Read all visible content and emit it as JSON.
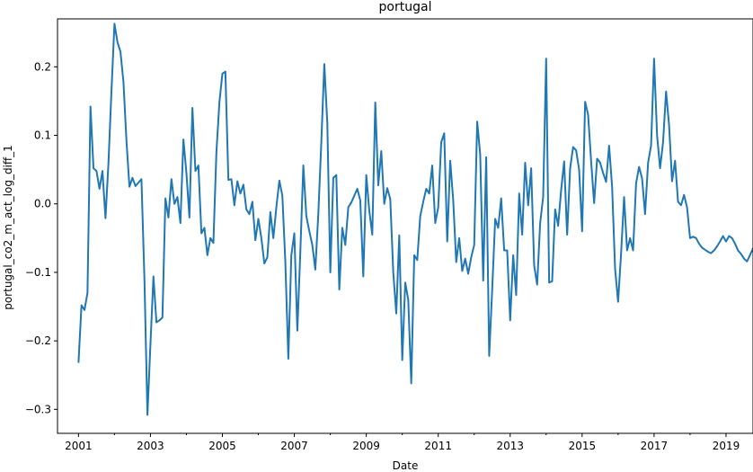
{
  "chart_data": {
    "type": "line",
    "title": "portugal",
    "xlabel": "Date",
    "ylabel": "portugal_co2_m_act_log_diff_1",
    "x_ticks": [
      "2001",
      "2003",
      "2005",
      "2007",
      "2009",
      "2011",
      "2013",
      "2015",
      "2017",
      "2019"
    ],
    "y_ticks": [
      "0.2",
      "0.1",
      "0.0",
      "−0.1",
      "−0.2",
      "−0.3"
    ],
    "ylim": [
      -0.335,
      0.27
    ],
    "xlim": [
      "2000-06",
      "2019-10"
    ],
    "grid": false,
    "line_color": "#1f77b4",
    "series": [
      {
        "start": "2001-01",
        "frequency": "monthly",
        "values": [
          -0.232,
          -0.148,
          -0.155,
          -0.13,
          0.142,
          0.052,
          0.048,
          0.022,
          0.048,
          -0.021,
          0.06,
          0.165,
          0.263,
          0.236,
          0.222,
          0.178,
          0.092,
          0.025,
          0.038,
          0.026,
          0.031,
          0.036,
          -0.11,
          -0.308,
          -0.205,
          -0.106,
          -0.173,
          -0.17,
          -0.166,
          0.008,
          -0.02,
          0.036,
          0.0,
          0.01,
          -0.028,
          0.094,
          0.045,
          -0.02,
          0.14,
          0.048,
          0.056,
          -0.043,
          -0.035,
          -0.075,
          -0.05,
          -0.057,
          0.075,
          0.148,
          0.19,
          0.193,
          0.035,
          0.036,
          -0.002,
          0.033,
          0.015,
          0.028,
          -0.008,
          -0.015,
          0.003,
          -0.053,
          -0.022,
          -0.05,
          -0.087,
          -0.078,
          -0.012,
          -0.05,
          -0.005,
          0.034,
          0.012,
          -0.085,
          -0.226,
          -0.075,
          -0.043,
          -0.185,
          -0.07,
          0.056,
          -0.018,
          -0.04,
          -0.06,
          -0.096,
          -0.015,
          0.09,
          0.204,
          0.118,
          -0.1,
          0.038,
          0.042,
          -0.125,
          -0.035,
          -0.06,
          -0.005,
          0.002,
          0.012,
          0.022,
          0.005,
          -0.106,
          0.042,
          -0.01,
          -0.045,
          0.148,
          0.027,
          0.077,
          0.0,
          0.023,
          0.007,
          -0.1,
          -0.16,
          -0.046,
          -0.228,
          -0.115,
          -0.14,
          -0.262,
          -0.075,
          -0.082,
          -0.018,
          0.003,
          0.022,
          0.015,
          0.056,
          -0.028,
          -0.005,
          0.09,
          0.103,
          -0.055,
          0.063,
          0.005,
          -0.085,
          -0.05,
          -0.098,
          -0.08,
          -0.102,
          -0.078,
          -0.06,
          0.12,
          0.072,
          -0.112,
          0.068,
          -0.222,
          -0.125,
          -0.022,
          -0.035,
          0.008,
          -0.068,
          -0.068,
          -0.17,
          -0.075,
          -0.133,
          0.015,
          -0.045,
          0.06,
          -0.002,
          0.052,
          -0.09,
          -0.118,
          -0.028,
          0.01,
          0.212,
          -0.115,
          -0.113,
          -0.008,
          -0.032,
          0.02,
          0.062,
          -0.045,
          0.052,
          0.083,
          0.078,
          0.05,
          -0.04,
          0.149,
          0.13,
          0.062,
          0.001,
          0.066,
          0.06,
          0.045,
          0.032,
          0.085,
          0.025,
          -0.095,
          -0.143,
          -0.072,
          0.01,
          -0.068,
          -0.05,
          -0.068,
          0.03,
          0.054,
          0.037,
          -0.015,
          0.06,
          0.085,
          0.212,
          0.1,
          0.052,
          0.09,
          0.164,
          0.115,
          0.033,
          0.063,
          0.003,
          -0.002,
          0.013,
          -0.005,
          -0.05,
          -0.048,
          -0.05,
          -0.058,
          -0.064,
          -0.067,
          -0.07,
          -0.072,
          -0.068,
          -0.062,
          -0.055,
          -0.047,
          -0.055,
          -0.047,
          -0.05,
          -0.058,
          -0.068,
          -0.073,
          -0.08,
          -0.084,
          -0.075,
          -0.065
        ]
      }
    ]
  }
}
